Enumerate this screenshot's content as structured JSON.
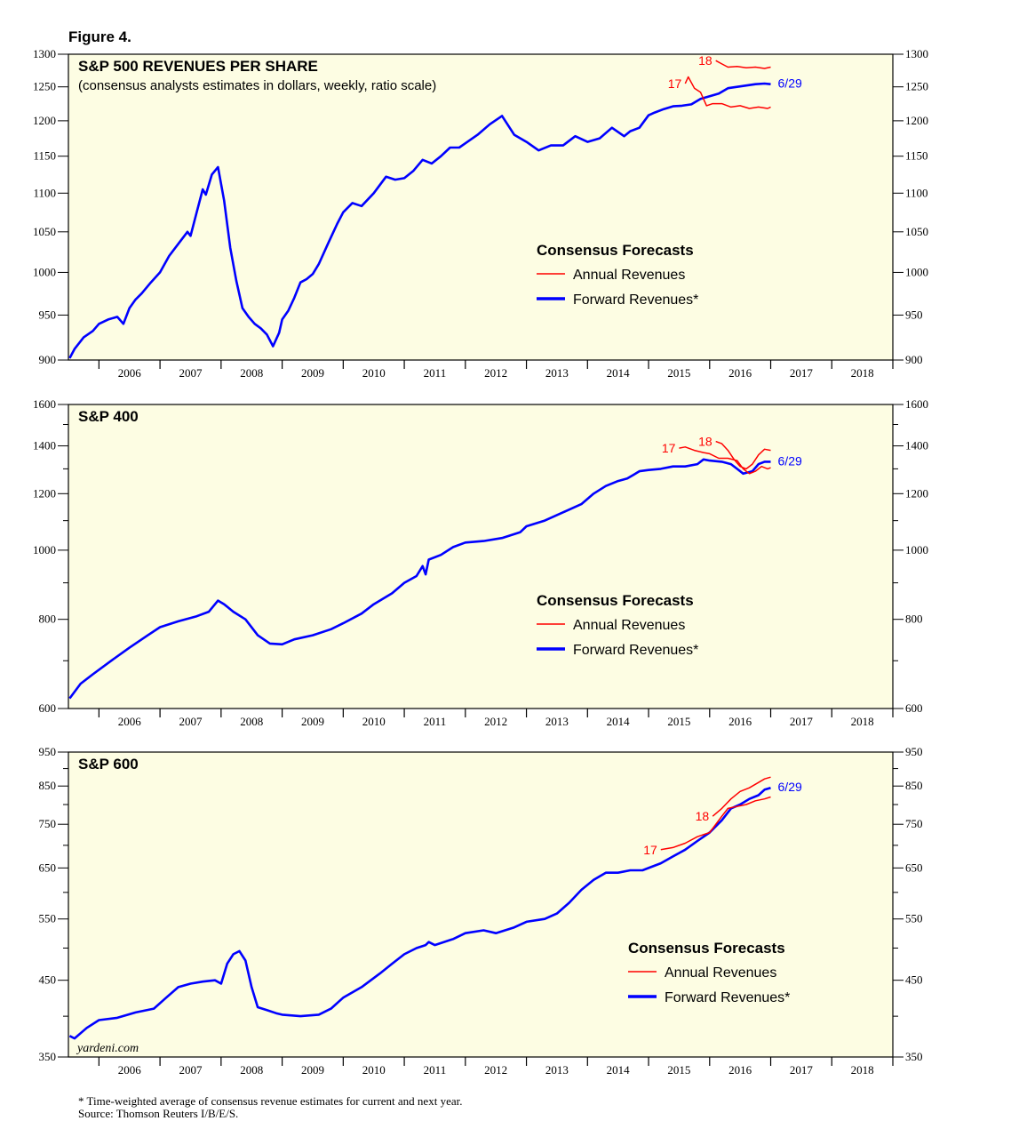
{
  "figure_label": "Figure 4.",
  "footnotes": {
    "line1": "* Time-weighted average of consensus revenue estimates for current and next year.",
    "line2": "Source: Thomson Reuters I/B/E/S."
  },
  "watermark": "yardeni.com",
  "colors": {
    "panel_bg": "#fdfde3",
    "forward": "#0000ff",
    "annual": "#ff0000"
  },
  "chart_data": [
    {
      "type": "line",
      "title": "S&P 500 REVENUES PER SHARE",
      "subtitle": "(consensus analysts estimates in dollars, weekly, ratio scale)",
      "scale": "log",
      "ylim": [
        900,
        1300
      ],
      "yticks": [
        900,
        950,
        1000,
        1050,
        1100,
        1150,
        1200,
        1250,
        1300
      ],
      "x_tick_labels": [
        "2006",
        "2007",
        "2008",
        "2009",
        "2010",
        "2011",
        "2012",
        "2013",
        "2014",
        "2015",
        "2016",
        "2017",
        "2018"
      ],
      "xlim": [
        2005.5,
        2019.0
      ],
      "legend": {
        "title": "Consensus Forecasts",
        "annual": "Annual Revenues",
        "forward": "Forward Revenues*"
      },
      "labels": {
        "annual_a": "17",
        "annual_b": "18",
        "end_date": "6/29"
      },
      "series": [
        {
          "name": "Forward Revenues",
          "color": "#0000ff",
          "x": [
            2005.52,
            2005.6,
            2005.75,
            2005.9,
            2006.0,
            2006.15,
            2006.3,
            2006.4,
            2006.5,
            2006.6,
            2006.7,
            2006.85,
            2007.0,
            2007.15,
            2007.3,
            2007.45,
            2007.5,
            2007.6,
            2007.7,
            2007.75,
            2007.85,
            2007.95,
            2008.05,
            2008.15,
            2008.25,
            2008.35,
            2008.45,
            2008.55,
            2008.65,
            2008.75,
            2008.85,
            2008.95,
            2009.0,
            2009.1,
            2009.2,
            2009.3,
            2009.4,
            2009.5,
            2009.6,
            2009.75,
            2009.9,
            2010.0,
            2010.15,
            2010.3,
            2010.5,
            2010.7,
            2010.85,
            2011.0,
            2011.15,
            2011.3,
            2011.45,
            2011.6,
            2011.75,
            2011.9,
            2012.0,
            2012.2,
            2012.4,
            2012.6,
            2012.8,
            2013.0,
            2013.2,
            2013.4,
            2013.6,
            2013.8,
            2014.0,
            2014.2,
            2014.4,
            2014.6,
            2014.7,
            2014.85,
            2015.0,
            2015.1,
            2015.25,
            2015.4,
            2015.55,
            2015.7,
            2015.85,
            2016.0,
            2016.15,
            2016.3,
            2016.45,
            2016.6,
            2016.75,
            2016.9,
            2017.0
          ],
          "y": [
            902,
            912,
            925,
            932,
            940,
            945,
            948,
            940,
            958,
            968,
            975,
            988,
            1000,
            1020,
            1035,
            1050,
            1045,
            1075,
            1105,
            1098,
            1125,
            1135,
            1090,
            1030,
            990,
            958,
            948,
            940,
            935,
            928,
            915,
            930,
            945,
            955,
            970,
            988,
            992,
            998,
            1010,
            1035,
            1060,
            1075,
            1087,
            1083,
            1100,
            1122,
            1118,
            1120,
            1130,
            1145,
            1140,
            1150,
            1162,
            1162,
            1168,
            1180,
            1195,
            1207,
            1180,
            1170,
            1158,
            1165,
            1165,
            1178,
            1170,
            1175,
            1190,
            1178,
            1185,
            1190,
            1208,
            1212,
            1217,
            1221,
            1222,
            1224,
            1232,
            1236,
            1240,
            1248,
            1250,
            1252,
            1254,
            1255,
            1254
          ]
        },
        {
          "name": "Annual Revenues 17",
          "color": "#ff0000",
          "x": [
            2015.6,
            2015.65,
            2015.75,
            2015.85,
            2015.95,
            2016.05,
            2016.2,
            2016.35,
            2016.5,
            2016.65,
            2016.8,
            2016.95,
            2017.0
          ],
          "y": [
            1255,
            1265,
            1248,
            1242,
            1222,
            1225,
            1225,
            1220,
            1222,
            1218,
            1220,
            1218,
            1220
          ]
        },
        {
          "name": "Annual Revenues 18",
          "color": "#ff0000",
          "x": [
            2016.1,
            2016.2,
            2016.3,
            2016.45,
            2016.6,
            2016.75,
            2016.9,
            2017.0
          ],
          "y": [
            1290,
            1285,
            1280,
            1281,
            1279,
            1280,
            1278,
            1280
          ]
        }
      ]
    },
    {
      "type": "line",
      "title": "S&P 400",
      "scale": "log",
      "ylim": [
        600,
        1600
      ],
      "yticks": [
        600,
        800,
        1000,
        1200,
        1400,
        1600
      ],
      "minor_yticks": [
        700,
        900,
        1100,
        1300,
        1500
      ],
      "x_tick_labels": [
        "2006",
        "2007",
        "2008",
        "2009",
        "2010",
        "2011",
        "2012",
        "2013",
        "2014",
        "2015",
        "2016",
        "2017",
        "2018"
      ],
      "xlim": [
        2005.5,
        2019.0
      ],
      "legend": {
        "title": "Consensus Forecasts",
        "annual": "Annual Revenues",
        "forward": "Forward Revenues*"
      },
      "labels": {
        "annual_a": "17",
        "annual_b": "18",
        "end_date": "6/29"
      },
      "series": [
        {
          "name": "Forward Revenues",
          "color": "#0000ff",
          "x": [
            2005.52,
            2005.7,
            2005.9,
            2006.2,
            2006.5,
            2006.8,
            2007.0,
            2007.3,
            2007.6,
            2007.8,
            2007.95,
            2008.05,
            2008.2,
            2008.4,
            2008.6,
            2008.8,
            2009.0,
            2009.2,
            2009.5,
            2009.8,
            2010.0,
            2010.3,
            2010.5,
            2010.8,
            2011.0,
            2011.2,
            2011.3,
            2011.35,
            2011.4,
            2011.6,
            2011.8,
            2012.0,
            2012.3,
            2012.6,
            2012.9,
            2013.0,
            2013.3,
            2013.6,
            2013.9,
            2014.1,
            2014.3,
            2014.5,
            2014.65,
            2014.75,
            2014.85,
            2015.0,
            2015.2,
            2015.4,
            2015.6,
            2015.8,
            2015.9,
            2016.0,
            2016.2,
            2016.35,
            2016.45,
            2016.55,
            2016.7,
            2016.8,
            2016.9,
            2017.0
          ],
          "y": [
            620,
            650,
            670,
            700,
            730,
            760,
            780,
            795,
            808,
            820,
            850,
            840,
            820,
            800,
            760,
            740,
            738,
            750,
            760,
            775,
            790,
            815,
            840,
            870,
            900,
            920,
            950,
            925,
            970,
            985,
            1010,
            1025,
            1030,
            1040,
            1060,
            1080,
            1100,
            1130,
            1160,
            1200,
            1230,
            1250,
            1260,
            1275,
            1290,
            1295,
            1300,
            1310,
            1310,
            1320,
            1340,
            1335,
            1330,
            1320,
            1300,
            1280,
            1290,
            1320,
            1330,
            1330
          ]
        },
        {
          "name": "Annual Revenues 17",
          "color": "#ff0000",
          "x": [
            2015.5,
            2015.6,
            2015.75,
            2015.9,
            2016.0,
            2016.15,
            2016.3,
            2016.45,
            2016.55,
            2016.65,
            2016.75,
            2016.85,
            2016.95,
            2017.0
          ],
          "y": [
            1390,
            1395,
            1380,
            1370,
            1365,
            1345,
            1345,
            1335,
            1300,
            1280,
            1290,
            1310,
            1300,
            1305
          ]
        },
        {
          "name": "Annual Revenues 18",
          "color": "#ff0000",
          "x": [
            2016.1,
            2016.2,
            2016.3,
            2016.4,
            2016.5,
            2016.6,
            2016.7,
            2016.8,
            2016.9,
            2017.0
          ],
          "y": [
            1420,
            1410,
            1380,
            1340,
            1310,
            1300,
            1320,
            1360,
            1385,
            1380
          ]
        }
      ]
    },
    {
      "type": "line",
      "title": "S&P 600",
      "scale": "log",
      "ylim": [
        350,
        950
      ],
      "yticks": [
        350,
        450,
        550,
        650,
        750,
        850,
        950
      ],
      "minor_yticks": [
        400,
        500,
        600,
        700,
        800,
        900
      ],
      "x_tick_labels": [
        "2006",
        "2007",
        "2008",
        "2009",
        "2010",
        "2011",
        "2012",
        "2013",
        "2014",
        "2015",
        "2016",
        "2017",
        "2018"
      ],
      "xlim": [
        2005.5,
        2019.0
      ],
      "legend": {
        "title": "Consensus Forecasts",
        "annual": "Annual Revenues",
        "forward": "Forward Revenues*"
      },
      "labels": {
        "annual_a": "17",
        "annual_b": "18",
        "end_date": "6/29"
      },
      "series": [
        {
          "name": "Forward Revenues",
          "color": "#0000ff",
          "x": [
            2005.52,
            2005.6,
            2005.8,
            2006.0,
            2006.3,
            2006.6,
            2006.9,
            2007.1,
            2007.3,
            2007.5,
            2007.7,
            2007.9,
            2008.0,
            2008.1,
            2008.2,
            2008.3,
            2008.4,
            2008.5,
            2008.6,
            2008.75,
            2008.9,
            2009.0,
            2009.3,
            2009.6,
            2009.8,
            2010.0,
            2010.3,
            2010.6,
            2010.8,
            2011.0,
            2011.2,
            2011.35,
            2011.4,
            2011.5,
            2011.8,
            2012.0,
            2012.3,
            2012.5,
            2012.8,
            2013.0,
            2013.3,
            2013.5,
            2013.7,
            2013.9,
            2014.1,
            2014.3,
            2014.5,
            2014.7,
            2014.9,
            2015.0,
            2015.2,
            2015.4,
            2015.6,
            2015.8,
            2016.0,
            2016.2,
            2016.35,
            2016.5,
            2016.65,
            2016.8,
            2016.9,
            2017.0
          ],
          "y": [
            375,
            372,
            385,
            395,
            398,
            405,
            410,
            425,
            440,
            445,
            448,
            450,
            445,
            475,
            490,
            495,
            480,
            440,
            412,
            408,
            404,
            402,
            400,
            402,
            410,
            425,
            440,
            460,
            475,
            490,
            500,
            505,
            510,
            505,
            515,
            525,
            530,
            525,
            535,
            545,
            550,
            560,
            580,
            605,
            625,
            640,
            640,
            645,
            645,
            650,
            660,
            675,
            690,
            710,
            730,
            760,
            790,
            800,
            815,
            825,
            840,
            845
          ]
        },
        {
          "name": "Annual Revenues 17",
          "color": "#ff0000",
          "x": [
            2015.2,
            2015.4,
            2015.6,
            2015.8,
            2016.0,
            2016.2,
            2016.3,
            2016.45,
            2016.6,
            2016.75,
            2016.9,
            2017.0
          ],
          "y": [
            690,
            695,
            705,
            720,
            730,
            770,
            790,
            795,
            800,
            810,
            815,
            820
          ]
        },
        {
          "name": "Annual Revenues 18",
          "color": "#ff0000",
          "x": [
            2016.05,
            2016.2,
            2016.35,
            2016.5,
            2016.65,
            2016.8,
            2016.9,
            2017.0
          ],
          "y": [
            770,
            790,
            815,
            835,
            845,
            860,
            870,
            875
          ]
        }
      ]
    }
  ]
}
